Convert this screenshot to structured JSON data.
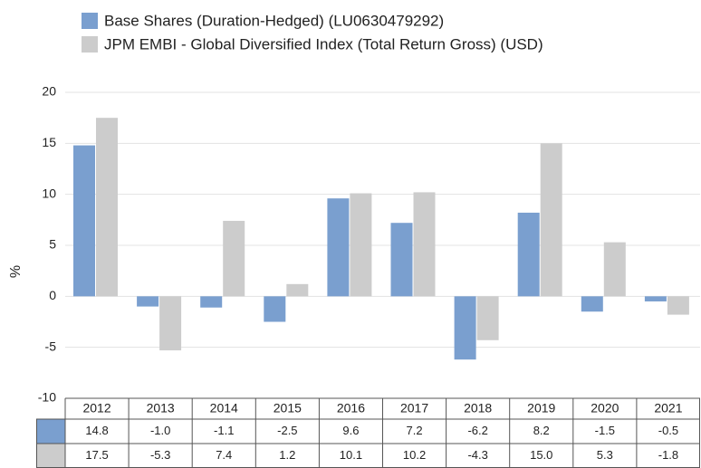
{
  "chart_data": {
    "type": "bar",
    "ylabel": "%",
    "categories": [
      "2012",
      "2013",
      "2014",
      "2015",
      "2016",
      "2017",
      "2018",
      "2019",
      "2020",
      "2021"
    ],
    "series": [
      {
        "name": "Base Shares (Duration-Hedged) (LU0630479292)",
        "color": "#7a9fcf",
        "values": [
          14.8,
          -1.0,
          -1.1,
          -2.5,
          9.6,
          7.2,
          -6.2,
          8.2,
          -1.5,
          -0.5
        ],
        "value_labels": [
          "14.8",
          "-1.0",
          "-1.1",
          "-2.5",
          "9.6",
          "7.2",
          "-6.2",
          "8.2",
          "-1.5",
          "-0.5"
        ]
      },
      {
        "name": "JPM EMBI - Global Diversified Index (Total Return Gross) (USD)",
        "color": "#cccccc",
        "values": [
          17.5,
          -5.3,
          7.4,
          1.2,
          10.1,
          10.2,
          -4.3,
          15.0,
          5.3,
          -1.8
        ],
        "value_labels": [
          "17.5",
          "-5.3",
          "7.4",
          "1.2",
          "10.1",
          "10.2",
          "-4.3",
          "15.0",
          "5.3",
          "-1.8"
        ]
      }
    ],
    "ylim": [
      -10,
      20
    ],
    "yticks": [
      -10,
      -5,
      0,
      5,
      10,
      15,
      20
    ],
    "grid": true
  }
}
